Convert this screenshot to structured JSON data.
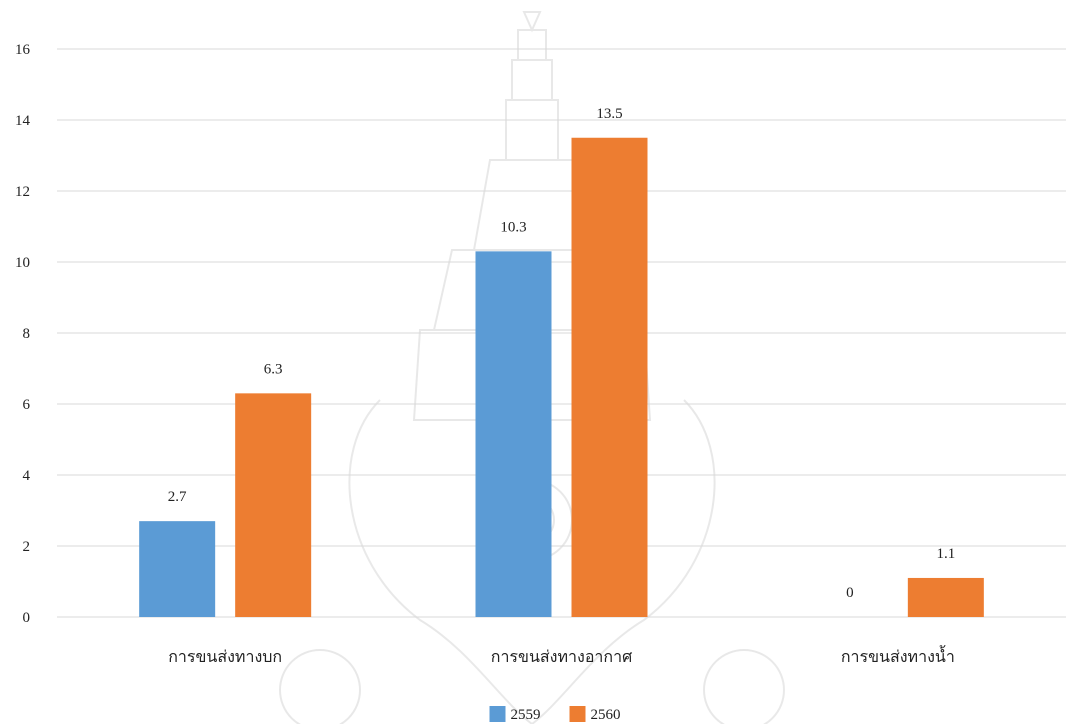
{
  "chart_data": {
    "type": "bar",
    "categories": [
      "การขนส่งทางบก",
      "การขนส่งทางอากาศ",
      "การขนส่งทางน้ำ"
    ],
    "series": [
      {
        "name": "2559",
        "values": [
          2.7,
          10.3,
          0
        ],
        "color": "#5b9bd5"
      },
      {
        "name": "2560",
        "values": [
          6.3,
          13.5,
          1.1
        ],
        "color": "#ed7d31"
      }
    ],
    "ylim": [
      0,
      16
    ],
    "yticks": [
      0,
      2,
      4,
      6,
      8,
      10,
      12,
      14,
      16
    ],
    "grid": true,
    "legend_position": "bottom",
    "gridline_color": "#d9d9d9"
  }
}
